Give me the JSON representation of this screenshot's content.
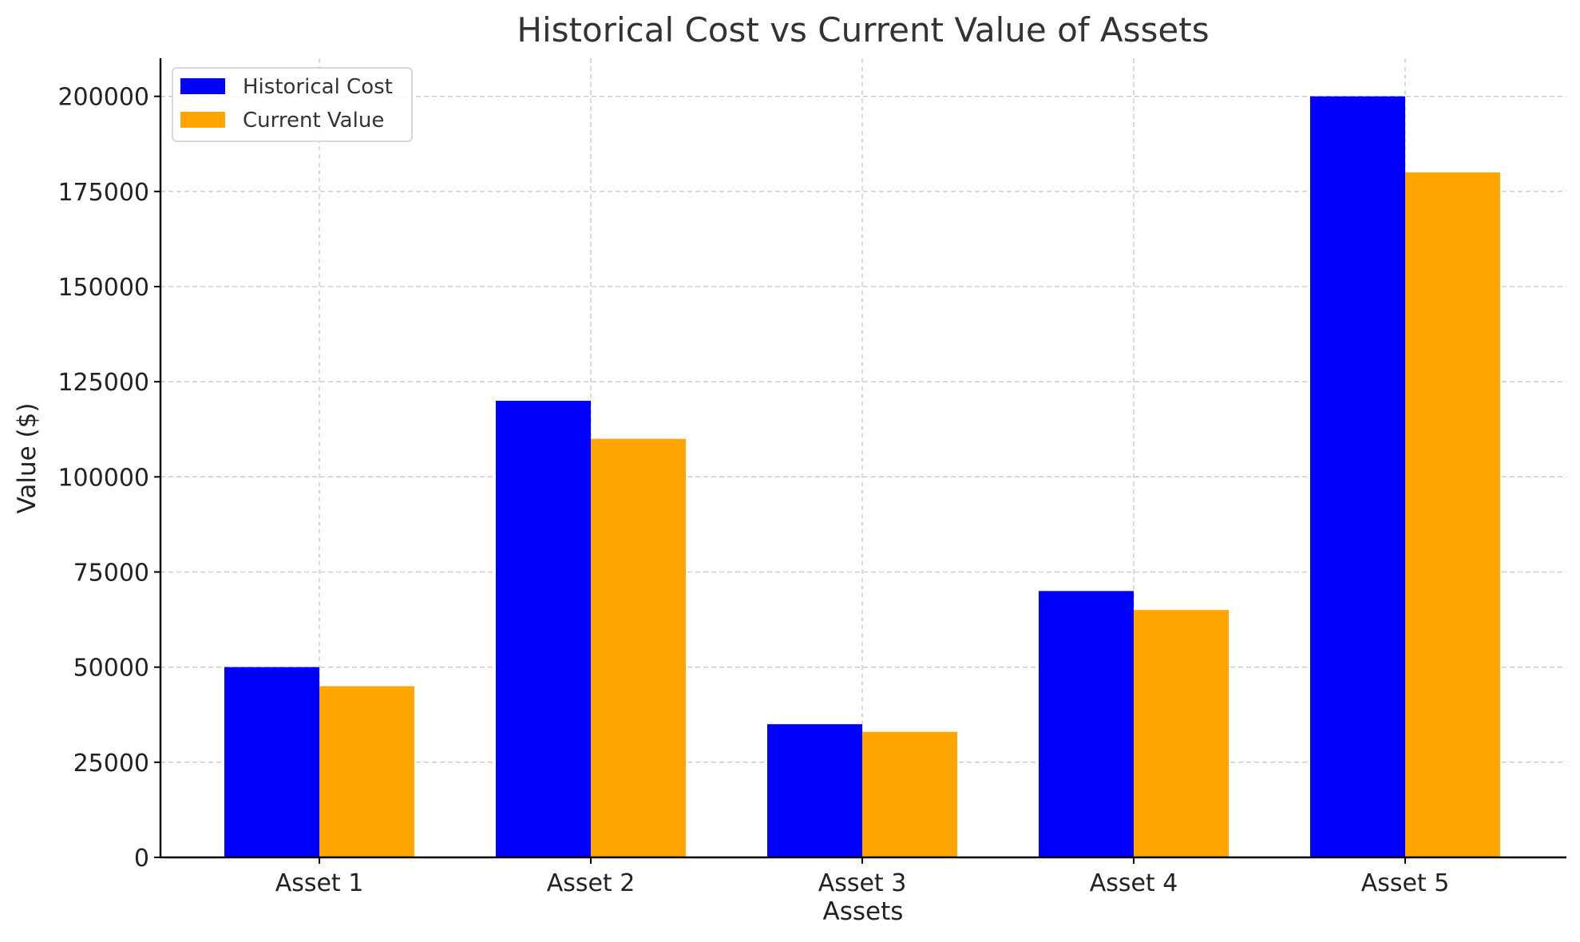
{
  "chart_data": {
    "type": "bar",
    "title": "Historical Cost vs Current Value of Assets",
    "xlabel": "Assets",
    "ylabel": "Value ($)",
    "categories": [
      "Asset 1",
      "Asset 2",
      "Asset 3",
      "Asset 4",
      "Asset 5"
    ],
    "series": [
      {
        "name": "Historical Cost",
        "values": [
          50000,
          120000,
          35000,
          70000,
          200000
        ],
        "color": "#0000ff"
      },
      {
        "name": "Current Value",
        "values": [
          45000,
          110000,
          33000,
          65000,
          180000
        ],
        "color": "#ffa500"
      }
    ],
    "ylim": [
      0,
      210000
    ],
    "yticks": [
      0,
      25000,
      50000,
      75000,
      100000,
      125000,
      150000,
      175000,
      200000
    ],
    "grid": true,
    "legend_position": "top-left"
  }
}
